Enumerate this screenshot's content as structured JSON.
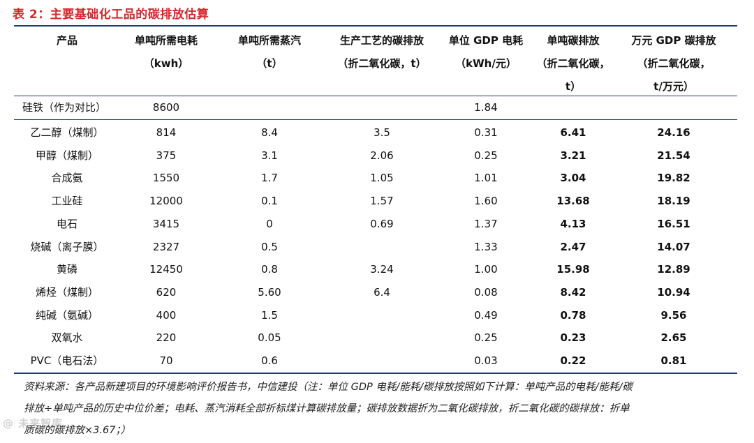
{
  "title": "表 2：主要基础化工品的碳排放估算",
  "headers": [
    {
      "l1": "产品",
      "l2": "",
      "l3": ""
    },
    {
      "l1": "单吨所需电耗",
      "l2": "（kwh）",
      "l3": ""
    },
    {
      "l1": "单吨所需蒸汽",
      "l2": "（t）",
      "l3": ""
    },
    {
      "l1": "生产工艺的碳排放",
      "l2": "（折二氧化碳，t）",
      "l3": ""
    },
    {
      "l1": "单位 GDP 电耗",
      "l2": "（kWh/元）",
      "l3": ""
    },
    {
      "l1": "单吨碳排放",
      "l2": "（折二氧化碳，",
      "l3": "t）"
    },
    {
      "l1": "万元 GDP 碳排放",
      "l2": "（折二氧化碳，",
      "l3": "t/万元）"
    }
  ],
  "reference_row": {
    "product": "硅铁（作为对比）",
    "power": "8600",
    "steam": "",
    "process": "",
    "gdp_power": "1.84",
    "ton_carbon": "",
    "gdp_carbon": ""
  },
  "rows": [
    {
      "product": "乙二醇（煤制）",
      "power": "814",
      "steam": "8.4",
      "process": "3.5",
      "gdp_power": "0.31",
      "ton_carbon": "6.41",
      "gdp_carbon": "24.16"
    },
    {
      "product": "甲醇（煤制）",
      "power": "375",
      "steam": "3.1",
      "process": "2.06",
      "gdp_power": "0.25",
      "ton_carbon": "3.21",
      "gdp_carbon": "21.54"
    },
    {
      "product": "合成氨",
      "power": "1550",
      "steam": "1.7",
      "process": "1.05",
      "gdp_power": "1.01",
      "ton_carbon": "3.04",
      "gdp_carbon": "19.82"
    },
    {
      "product": "工业硅",
      "power": "12000",
      "steam": "0.1",
      "process": "1.57",
      "gdp_power": "1.60",
      "ton_carbon": "13.68",
      "gdp_carbon": "18.19"
    },
    {
      "product": "电石",
      "power": "3415",
      "steam": "0",
      "process": "0.69",
      "gdp_power": "1.37",
      "ton_carbon": "4.13",
      "gdp_carbon": "16.51"
    },
    {
      "product": "烧碱（离子膜）",
      "power": "2327",
      "steam": "0.5",
      "process": "",
      "gdp_power": "1.33",
      "ton_carbon": "2.47",
      "gdp_carbon": "14.07"
    },
    {
      "product": "黄磷",
      "power": "12450",
      "steam": "0.8",
      "process": "3.24",
      "gdp_power": "1.00",
      "ton_carbon": "15.98",
      "gdp_carbon": "12.89"
    },
    {
      "product": "烯烃（煤制）",
      "power": "620",
      "steam": "5.60",
      "process": "6.4",
      "gdp_power": "0.08",
      "ton_carbon": "8.42",
      "gdp_carbon": "10.94"
    },
    {
      "product": "纯碱（氨碱）",
      "power": "400",
      "steam": "1.5",
      "process": "",
      "gdp_power": "0.49",
      "ton_carbon": "0.78",
      "gdp_carbon": "9.56"
    },
    {
      "product": "双氧水",
      "power": "220",
      "steam": "0.05",
      "process": "",
      "gdp_power": "0.25",
      "ton_carbon": "0.23",
      "gdp_carbon": "2.65"
    },
    {
      "product": "PVC（电石法）",
      "power": "70",
      "steam": "0.6",
      "process": "",
      "gdp_power": "0.03",
      "ton_carbon": "0.22",
      "gdp_carbon": "0.81"
    }
  ],
  "source_lines": [
    "资料来源：各产品新建项目的环境影响评价报告书，中信建投（注：单位 GDP 电耗/能耗/碳排放按照如下计算：单吨产品的电耗/能耗/碳",
    "排放÷单吨产品的历史中位价差；电耗、蒸汽消耗全部折标煤计算碳排放量；碳排放数据折为二氧化碳排放，折二氧化碳的碳排放：折单",
    "质碳的碳排放×3.67；）"
  ],
  "watermark": "@ 未来智库"
}
